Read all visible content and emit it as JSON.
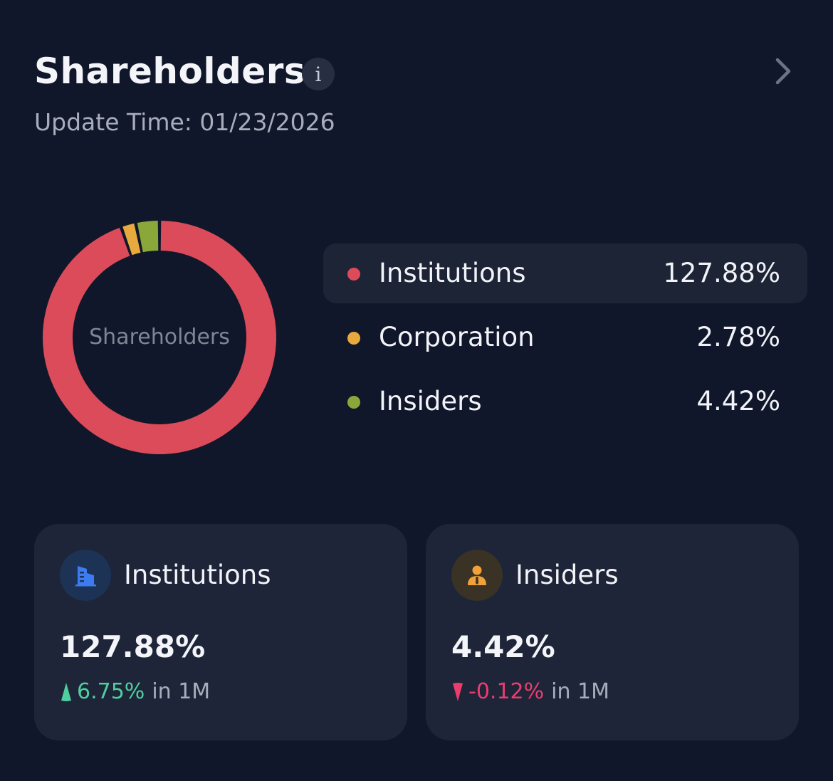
{
  "header": {
    "title": "Shareholders",
    "info_icon": "info-icon",
    "info_glyph": "i",
    "update_time": "Update Time: 01/23/2026"
  },
  "chart_data": {
    "type": "pie",
    "center_label": "Shareholders",
    "categories": [
      "Institutions",
      "Corporation",
      "Insiders"
    ],
    "values": [
      127.88,
      2.78,
      4.42
    ],
    "colors": [
      "#dc4b5a",
      "#e8aa3c",
      "#8aa83a"
    ]
  },
  "legend": [
    {
      "label": "Institutions",
      "value": "127.88%",
      "color": "#dc4b5a",
      "active": true
    },
    {
      "label": "Corporation",
      "value": "2.78%",
      "color": "#e8aa3c",
      "active": false
    },
    {
      "label": "Insiders",
      "value": "4.42%",
      "color": "#8aa83a",
      "active": false
    }
  ],
  "cards": {
    "institutions": {
      "title": "Institutions",
      "icon": "building-icon",
      "value": "127.88%",
      "change": "6.75%",
      "direction": "up",
      "suffix": "in 1M"
    },
    "insiders": {
      "title": "Insiders",
      "icon": "person-icon",
      "value": "4.42%",
      "change": "-0.12%",
      "direction": "down",
      "suffix": "in 1M"
    }
  },
  "colors": {
    "background": "#11172a",
    "card": "#1e2538",
    "up": "#4fcf9f",
    "down": "#ea3d6e"
  }
}
